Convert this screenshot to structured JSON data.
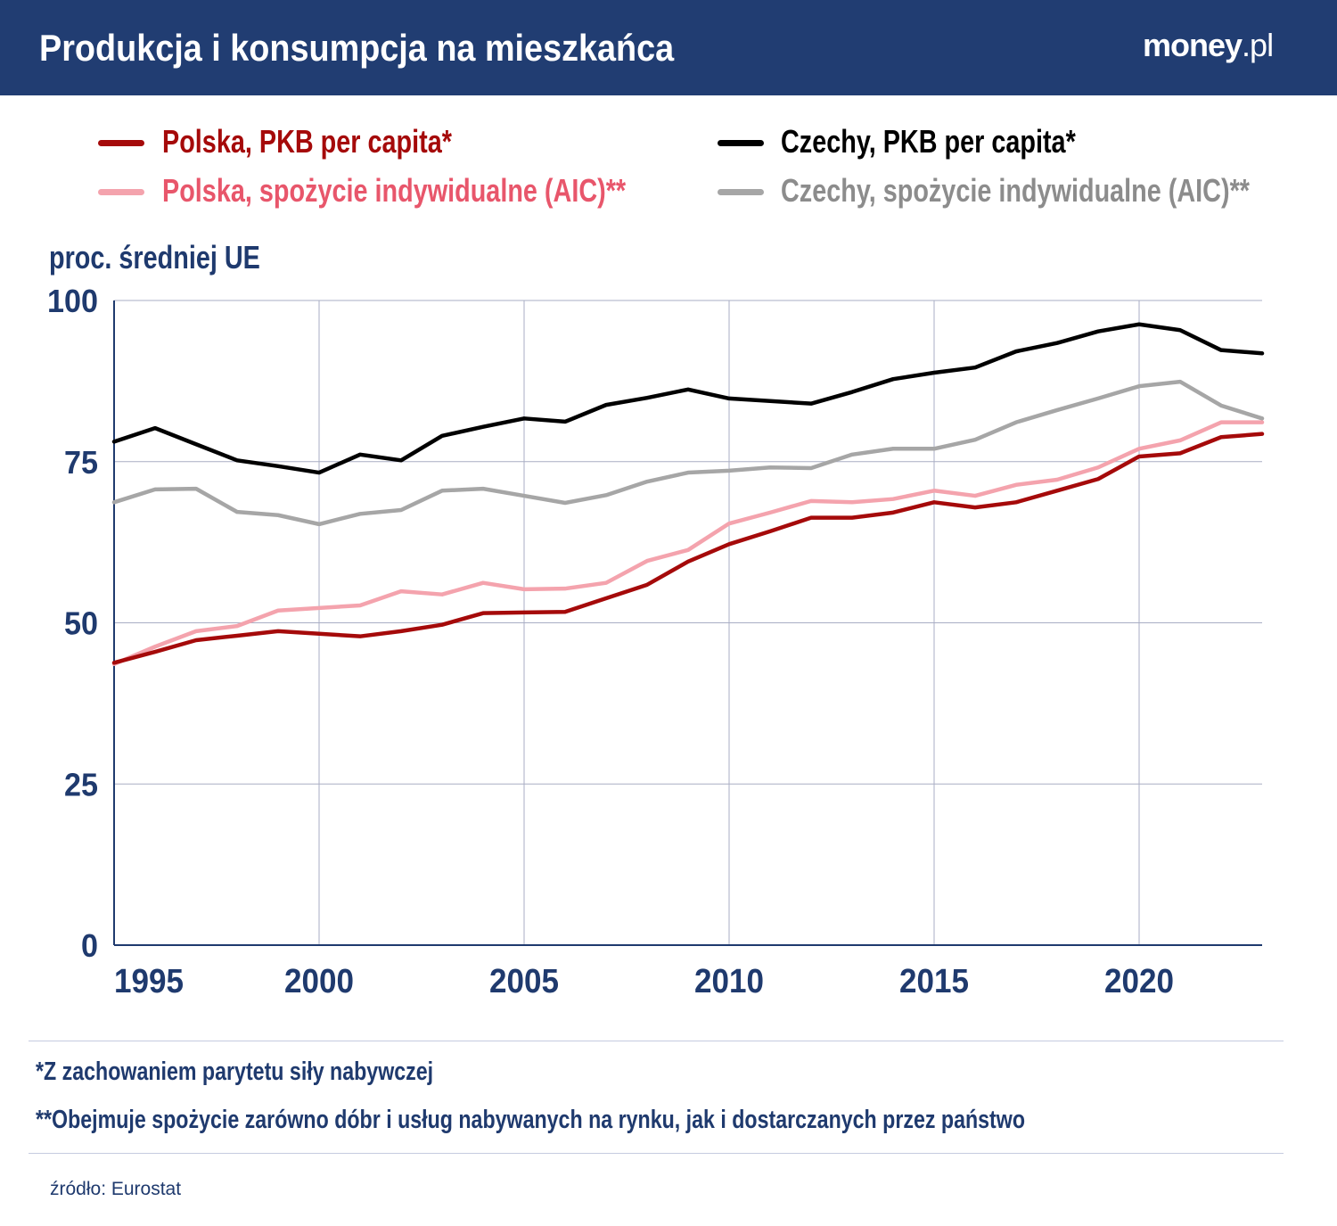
{
  "header": {
    "title": "Produkcja i konsumpcja na mieszkańca",
    "logo": "money.pl"
  },
  "legend": [
    {
      "label": "Polska, PKB per capita*",
      "color": "#a50a0a"
    },
    {
      "label": "Polska, spożycie indywidualne (AIC)**",
      "color": "#f4a3ad"
    },
    {
      "label": "Czechy, PKB per capita*",
      "color": "#000000"
    },
    {
      "label": "Czechy, spożycie indywidualne (AIC)**",
      "color": "#a6a6a6"
    }
  ],
  "legend_text_colors": [
    "#a50a0a",
    "#e8566b",
    "#000000",
    "#8c8c8c"
  ],
  "chart_data": {
    "type": "line",
    "ylabel": "proc. średniej UE",
    "ylim": [
      0,
      100
    ],
    "yticks": [
      0,
      25,
      50,
      75,
      100
    ],
    "xlim": [
      1995,
      2023
    ],
    "xticks": [
      1995,
      2000,
      2005,
      2010,
      2015,
      2020
    ],
    "grid": true,
    "x": [
      1995,
      1996,
      1997,
      1998,
      1999,
      2000,
      2001,
      2002,
      2003,
      2004,
      2005,
      2006,
      2007,
      2008,
      2009,
      2010,
      2011,
      2012,
      2013,
      2014,
      2015,
      2016,
      2017,
      2018,
      2019,
      2020,
      2021,
      2022,
      2023
    ],
    "series": [
      {
        "name": "Czechy, spożycie indywidualne (AIC)**",
        "color": "#a6a6a6",
        "values": [
          68.7,
          70.7,
          70.8,
          67.2,
          66.7,
          65.3,
          66.9,
          67.5,
          70.5,
          70.8,
          69.7,
          68.6,
          69.8,
          71.9,
          73.3,
          73.6,
          74.1,
          74.0,
          76.1,
          77.0,
          77.0,
          78.4,
          81.1,
          83.0,
          84.8,
          86.7,
          87.4,
          83.7,
          81.7
        ]
      },
      {
        "name": "Czechy, PKB per capita*",
        "color": "#000000",
        "values": [
          78.1,
          80.2,
          77.7,
          75.2,
          74.3,
          73.3,
          76.1,
          75.2,
          79.0,
          80.4,
          81.7,
          81.2,
          83.8,
          84.9,
          86.2,
          84.8,
          84.4,
          84.0,
          85.8,
          87.8,
          88.8,
          89.6,
          92.1,
          93.4,
          95.2,
          96.3,
          95.4,
          92.3,
          91.8
        ]
      },
      {
        "name": "Polska, spożycie indywidualne (AIC)**",
        "color": "#f4a3ad",
        "values": [
          43.6,
          46.3,
          48.7,
          49.5,
          51.9,
          52.3,
          52.7,
          54.9,
          54.4,
          56.2,
          55.2,
          55.3,
          56.2,
          59.6,
          61.3,
          65.4,
          67.1,
          68.9,
          68.7,
          69.2,
          70.5,
          69.7,
          71.4,
          72.2,
          74.1,
          77.0,
          78.3,
          81.1,
          81.1
        ]
      },
      {
        "name": "Polska, PKB per capita*",
        "color": "#a50a0a",
        "values": [
          43.8,
          45.5,
          47.3,
          48.0,
          48.7,
          48.3,
          47.9,
          48.7,
          49.7,
          51.5,
          51.6,
          51.7,
          53.8,
          55.9,
          59.5,
          62.2,
          64.2,
          66.3,
          66.3,
          67.1,
          68.7,
          67.9,
          68.7,
          70.5,
          72.3,
          75.8,
          76.3,
          78.8,
          79.3
        ]
      }
    ]
  },
  "notes": [
    "*Z zachowaniem parytetu siły nabywczej",
    "**Obejmuje spożycie zarówno dóbr i usług nabywanych na rynku, jak i dostarczanych przez państwo"
  ],
  "source": "źródło: Eurostat"
}
